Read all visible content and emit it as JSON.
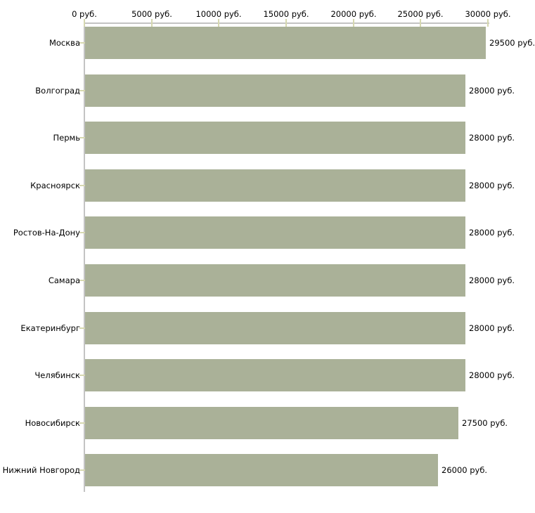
{
  "chart_data": {
    "type": "bar",
    "orientation": "horizontal",
    "title": "",
    "xlabel": "",
    "ylabel": "",
    "legend": "none",
    "grid": "off",
    "categories": [
      "Москва",
      "Волгоград",
      "Пермь",
      "Красноярск",
      "Ростов-На-Дону",
      "Самара",
      "Екатеринбург",
      "Челябинск",
      "Новосибирск",
      "Нижний Новгород"
    ],
    "values": [
      29500,
      28000,
      28000,
      28000,
      28000,
      28000,
      28000,
      28000,
      27500,
      26000
    ],
    "value_labels": [
      "29500 руб.",
      "28000 руб.",
      "28000 руб.",
      "28000 руб.",
      "28000 руб.",
      "28000 руб.",
      "28000 руб.",
      "28000 руб.",
      "27500 руб.",
      "26000 руб."
    ],
    "x_axis": {
      "position": "top",
      "range": [
        0,
        30000
      ],
      "unit": "руб.",
      "ticks": [
        0,
        5000,
        10000,
        15000,
        20000,
        25000,
        30000
      ],
      "tick_labels": [
        "0 руб.",
        "5000 руб.",
        "10000 руб.",
        "15000 руб.",
        "20000 руб.",
        "25000 руб.",
        "30000 руб."
      ]
    },
    "colors": {
      "bar": "#aab198",
      "axis_line": "#c3c3c3",
      "tick_mark": "#d6d8b0",
      "text": "#000000",
      "background": "#ffffff"
    }
  }
}
